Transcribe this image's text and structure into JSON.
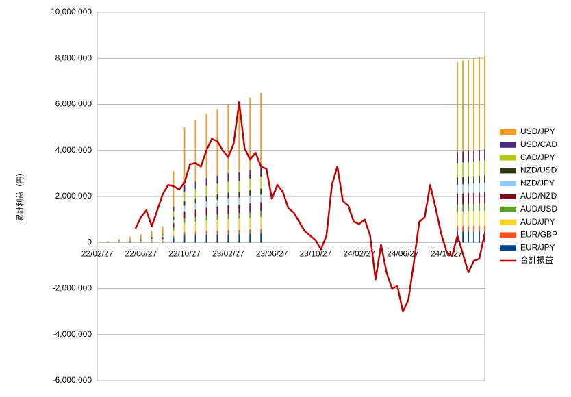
{
  "chart_data": {
    "type": "stacked-bar-line",
    "y_label": "累計利益（円）",
    "categories": [
      "22/02/27",
      null,
      null,
      null,
      null,
      null,
      null,
      null,
      "22/06/27",
      null,
      null,
      null,
      null,
      null,
      null,
      null,
      "22/10/27",
      null,
      null,
      null,
      null,
      null,
      null,
      null,
      "23/02/27",
      null,
      null,
      null,
      null,
      null,
      null,
      null,
      "23/06/27",
      null,
      null,
      null,
      null,
      null,
      null,
      null,
      "23/10/27",
      null,
      null,
      null,
      null,
      null,
      null,
      null,
      "24/02/27",
      null,
      null,
      null,
      null,
      null,
      null,
      null,
      "24/06/27",
      null,
      null,
      null,
      null,
      null,
      null,
      null,
      "24/10/27",
      null,
      null,
      null,
      null,
      null,
      null,
      null
    ],
    "ylim": [
      -6000000,
      10000000
    ],
    "yticks": [
      {
        "value": -6000000,
        "label": "-6,000,000"
      },
      {
        "value": -4000000,
        "label": "-4,000,000"
      },
      {
        "value": -2000000,
        "label": "-2,000,000"
      },
      0,
      {
        "value": 2000000,
        "label": "2,000,000"
      },
      {
        "value": 4000000,
        "label": "4,000,000"
      },
      {
        "value": 6000000,
        "label": "6,000,000"
      },
      {
        "value": 8000000,
        "label": "8,000,000"
      },
      {
        "value": 10000000,
        "label": "10,000,000"
      }
    ],
    "grid": true,
    "legend": "right",
    "series": [
      {
        "name": "EUR/JPY",
        "color": "#00468c",
        "kind": "bar",
        "values": [
          null,
          null,
          3000,
          null,
          9000,
          null,
          15000,
          null,
          21000,
          null,
          30000,
          null,
          42000,
          null,
          186000,
          null,
          300000,
          null,
          318000,
          null,
          336000,
          null,
          348000,
          null,
          360000,
          null,
          366000,
          null,
          378000,
          null,
          390000,
          null,
          null,
          null,
          null,
          null,
          null,
          null,
          null,
          null,
          null,
          null,
          null,
          null,
          null,
          null,
          null,
          null,
          null,
          null,
          null,
          null,
          null,
          null,
          null,
          null,
          null,
          null,
          null,
          null,
          null,
          null,
          null,
          null,
          null,
          null,
          471000,
          474000,
          477000,
          480000,
          483000,
          486000
        ]
      },
      {
        "name": "EUR/GBP",
        "color": "#ff4f1f",
        "kind": "bar",
        "values": [
          null,
          null,
          1500,
          null,
          4500,
          null,
          7500,
          null,
          10500,
          null,
          15000,
          null,
          21000,
          null,
          93000,
          null,
          150000,
          null,
          159000,
          null,
          168000,
          null,
          174000,
          null,
          180000,
          null,
          183000,
          null,
          189000,
          null,
          195000,
          null,
          null,
          null,
          null,
          null,
          null,
          null,
          null,
          null,
          null,
          null,
          null,
          null,
          null,
          null,
          null,
          null,
          null,
          null,
          null,
          null,
          null,
          null,
          null,
          null,
          null,
          null,
          null,
          null,
          null,
          null,
          null,
          null,
          null,
          null,
          235500,
          237000,
          238500,
          240000,
          241500,
          243000
        ]
      },
      {
        "name": "AUD/JPY",
        "color": "#ffd320",
        "kind": "bar",
        "values": [
          null,
          null,
          4000,
          null,
          12000,
          null,
          20000,
          null,
          28000,
          null,
          40000,
          null,
          56000,
          null,
          248000,
          null,
          400000,
          null,
          424000,
          null,
          448000,
          null,
          464000,
          null,
          480000,
          null,
          488000,
          null,
          504000,
          null,
          520000,
          null,
          null,
          null,
          null,
          null,
          null,
          null,
          null,
          null,
          null,
          null,
          null,
          null,
          null,
          null,
          null,
          null,
          null,
          null,
          null,
          null,
          null,
          null,
          null,
          null,
          null,
          null,
          null,
          null,
          null,
          null,
          null,
          null,
          null,
          null,
          628000,
          632000,
          636000,
          640000,
          644000,
          648000
        ]
      },
      {
        "name": "AUD/USD",
        "color": "#5c9e2a",
        "kind": "bar",
        "values": [
          null,
          null,
          2000,
          null,
          6000,
          null,
          10000,
          null,
          14000,
          null,
          20000,
          null,
          28000,
          null,
          124000,
          null,
          200000,
          null,
          212000,
          null,
          224000,
          null,
          232000,
          null,
          240000,
          null,
          244000,
          null,
          252000,
          null,
          260000,
          null,
          null,
          null,
          null,
          null,
          null,
          null,
          null,
          null,
          null,
          null,
          null,
          null,
          null,
          null,
          null,
          null,
          null,
          null,
          null,
          null,
          null,
          null,
          null,
          null,
          null,
          null,
          null,
          null,
          null,
          null,
          null,
          null,
          null,
          null,
          314000,
          316000,
          318000,
          320000,
          322000,
          324000
        ]
      },
      {
        "name": "AUD/NZD",
        "color": "#7b0a1d",
        "kind": "bar",
        "values": [
          null,
          null,
          3000,
          null,
          9000,
          null,
          15000,
          null,
          21000,
          null,
          30000,
          null,
          42000,
          null,
          186000,
          null,
          300000,
          null,
          318000,
          null,
          336000,
          null,
          348000,
          null,
          360000,
          null,
          366000,
          null,
          378000,
          null,
          390000,
          null,
          null,
          null,
          null,
          null,
          null,
          null,
          null,
          null,
          null,
          null,
          null,
          null,
          null,
          null,
          null,
          null,
          null,
          null,
          null,
          null,
          null,
          null,
          null,
          null,
          null,
          null,
          null,
          null,
          null,
          null,
          null,
          null,
          null,
          null,
          471000,
          474000,
          477000,
          480000,
          483000,
          486000
        ]
      },
      {
        "name": "NZD/JPY",
        "color": "#8ecbf7",
        "kind": "bar",
        "values": [
          null,
          null,
          2500,
          null,
          7500,
          null,
          12500,
          null,
          17500,
          null,
          25000,
          null,
          35000,
          null,
          155000,
          null,
          250000,
          null,
          265000,
          null,
          280000,
          null,
          290000,
          null,
          300000,
          null,
          305000,
          null,
          315000,
          null,
          325000,
          null,
          null,
          null,
          null,
          null,
          null,
          null,
          null,
          null,
          null,
          null,
          null,
          null,
          null,
          null,
          null,
          null,
          null,
          null,
          null,
          null,
          null,
          null,
          null,
          null,
          null,
          null,
          null,
          null,
          null,
          null,
          null,
          null,
          null,
          null,
          392500,
          395000,
          397500,
          400000,
          402500,
          405000
        ]
      },
      {
        "name": "NZD/USD",
        "color": "#2e3b12",
        "kind": "bar",
        "values": [
          null,
          null,
          2000,
          null,
          6000,
          null,
          10000,
          null,
          14000,
          null,
          20000,
          null,
          28000,
          null,
          124000,
          null,
          200000,
          null,
          212000,
          null,
          224000,
          null,
          232000,
          null,
          240000,
          null,
          244000,
          null,
          252000,
          null,
          260000,
          null,
          null,
          null,
          null,
          null,
          null,
          null,
          null,
          null,
          null,
          null,
          null,
          null,
          null,
          null,
          null,
          null,
          null,
          null,
          null,
          null,
          null,
          null,
          null,
          null,
          null,
          null,
          null,
          null,
          null,
          null,
          null,
          null,
          null,
          null,
          314000,
          316000,
          318000,
          320000,
          322000,
          324000
        ]
      },
      {
        "name": "CAD/JPY",
        "color": "#b5cc1a",
        "kind": "bar",
        "values": [
          null,
          null,
          4000,
          null,
          12000,
          null,
          20000,
          null,
          28000,
          null,
          40000,
          null,
          56000,
          null,
          248000,
          null,
          400000,
          null,
          424000,
          null,
          448000,
          null,
          464000,
          null,
          480000,
          null,
          488000,
          null,
          504000,
          null,
          520000,
          null,
          null,
          null,
          null,
          null,
          null,
          null,
          null,
          null,
          null,
          null,
          null,
          null,
          null,
          null,
          null,
          null,
          null,
          null,
          null,
          null,
          null,
          null,
          null,
          null,
          null,
          null,
          null,
          null,
          null,
          null,
          null,
          null,
          null,
          null,
          628000,
          632000,
          636000,
          640000,
          644000,
          648000
        ]
      },
      {
        "name": "USD/CAD",
        "color": "#4b2a7b",
        "kind": "bar",
        "values": [
          null,
          null,
          3000,
          null,
          9000,
          null,
          15000,
          null,
          21000,
          null,
          30000,
          null,
          42000,
          null,
          186000,
          null,
          300000,
          null,
          318000,
          null,
          336000,
          null,
          348000,
          null,
          360000,
          null,
          366000,
          null,
          378000,
          null,
          390000,
          null,
          null,
          null,
          null,
          null,
          null,
          null,
          null,
          null,
          null,
          null,
          null,
          null,
          null,
          null,
          null,
          null,
          null,
          null,
          null,
          null,
          null,
          null,
          null,
          null,
          null,
          null,
          null,
          null,
          null,
          null,
          null,
          null,
          null,
          null,
          471000,
          474000,
          477000,
          480000,
          483000,
          486000
        ]
      },
      {
        "name": "USD/JPY",
        "color": "#f39c1e",
        "kind": "bar",
        "values": [
          null,
          null,
          25000,
          null,
          75000,
          null,
          125000,
          null,
          175000,
          null,
          250000,
          null,
          350000,
          null,
          1550000,
          null,
          2500000,
          null,
          2650000,
          null,
          2800000,
          null,
          2900000,
          null,
          3000000,
          null,
          3050000,
          null,
          3150000,
          null,
          3250000,
          null,
          null,
          null,
          null,
          null,
          null,
          null,
          null,
          null,
          null,
          null,
          null,
          null,
          null,
          null,
          null,
          null,
          null,
          null,
          null,
          null,
          null,
          null,
          null,
          null,
          null,
          null,
          null,
          null,
          null,
          null,
          null,
          null,
          null,
          null,
          3925000,
          3950000,
          3975000,
          4000000,
          4025000,
          4050000
        ]
      },
      {
        "name": "合計損益",
        "color": "#c00000",
        "kind": "line",
        "values": [
          null,
          null,
          null,
          null,
          null,
          null,
          null,
          600000,
          1100000,
          1400000,
          700000,
          1400000,
          2100000,
          2500000,
          2450000,
          2300000,
          2600000,
          3400000,
          3450000,
          3300000,
          4000000,
          4500000,
          4400000,
          4000000,
          3700000,
          4300000,
          6100000,
          4100000,
          3600000,
          3900000,
          3300000,
          3200000,
          1900000,
          2500000,
          2200000,
          1500000,
          1300000,
          900000,
          500000,
          300000,
          100000,
          -300000,
          300000,
          2500000,
          3300000,
          1800000,
          1600000,
          900000,
          800000,
          1000000,
          300000,
          -1600000,
          -100000,
          -1300000,
          -2000000,
          -1900000,
          -3000000,
          -2500000,
          -900000,
          900000,
          1100000,
          2500000,
          1500000,
          400000,
          -400000,
          -600000,
          300000,
          -500000,
          -1300000,
          -800000,
          -700000,
          400000
        ]
      }
    ]
  }
}
